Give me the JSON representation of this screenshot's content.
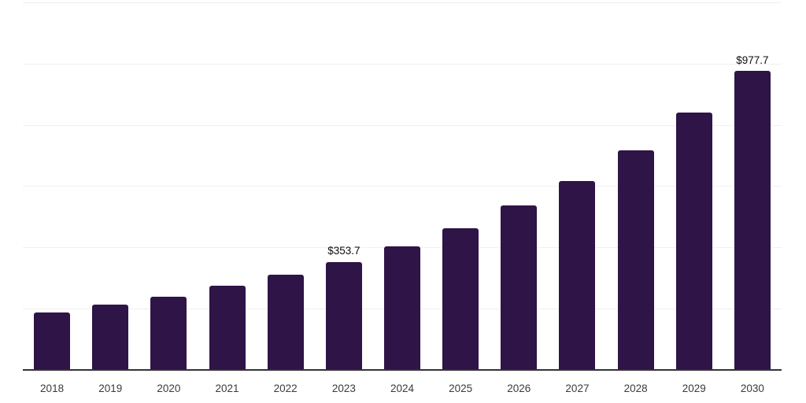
{
  "chart_data": {
    "type": "bar",
    "title": "",
    "xlabel": "",
    "ylabel": "",
    "categories": [
      "2018",
      "2019",
      "2020",
      "2021",
      "2022",
      "2023",
      "2024",
      "2025",
      "2026",
      "2027",
      "2028",
      "2029",
      "2030"
    ],
    "values": [
      188.7,
      214.3,
      240.0,
      274.3,
      311.0,
      353.7,
      405.0,
      464.0,
      536.5,
      618.5,
      718.5,
      840.0,
      977.7
    ],
    "value_labels": [
      "",
      "",
      "",
      "",
      "",
      "$353.7",
      "",
      "",
      "",
      "",
      "",
      "",
      "$977.7"
    ],
    "ylim": [
      0,
      1200
    ],
    "gridline_step": 200,
    "grid": true,
    "legend": false,
    "y_axis_labels_visible": false,
    "colors": {
      "bar": "#2f1447",
      "axis_line": "#333333",
      "gridline": "#f0f0f0",
      "value_label": "#0d0d0d",
      "tick_label": "#3a3a3a",
      "background": "#ffffff"
    }
  }
}
